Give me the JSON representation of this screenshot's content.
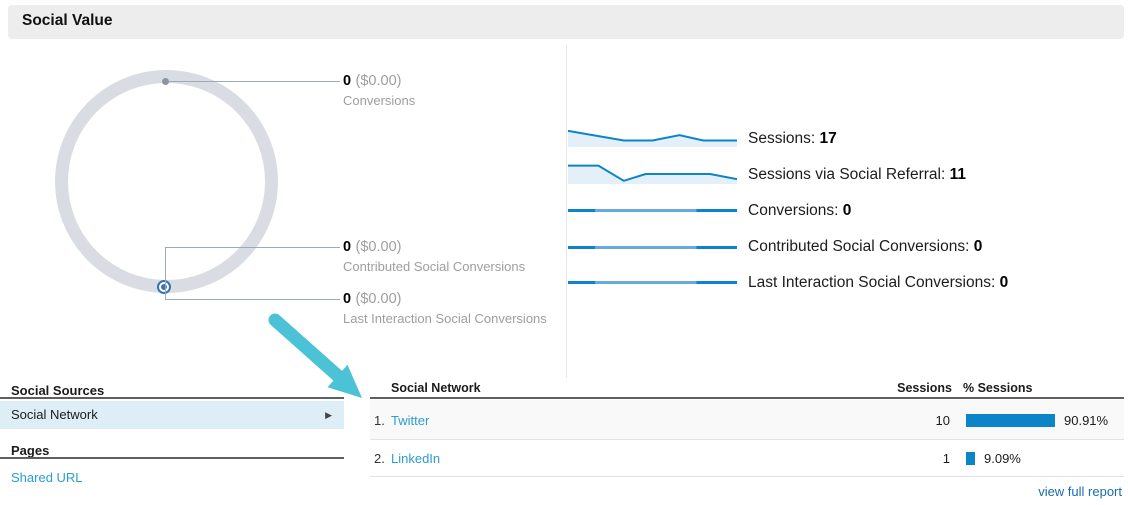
{
  "header": {
    "title": "Social Value"
  },
  "donut": {
    "ring_color": "#d9dde3",
    "callouts": [
      {
        "value": "0",
        "money": "($0.00)",
        "label": "Conversions"
      },
      {
        "value": "0",
        "money": "($0.00)",
        "label": "Contributed Social Conversions"
      },
      {
        "value": "0",
        "money": "($0.00)",
        "label": "Last Interaction Social Conversions"
      }
    ]
  },
  "metrics": {
    "rows": [
      {
        "label": "Sessions:",
        "value": "17",
        "spark": {
          "type": "area",
          "points": [
            [
              0,
              0.88
            ],
            [
              0.33,
              0.28
            ],
            [
              0.5,
              0.28
            ],
            [
              0.66,
              0.62
            ],
            [
              0.8,
              0.28
            ],
            [
              1,
              0.28
            ]
          ]
        }
      },
      {
        "label": "Sessions via Social Referral:",
        "value": "11",
        "spark": {
          "type": "area",
          "points": [
            [
              0,
              0.82
            ],
            [
              0.18,
              0.82
            ],
            [
              0.33,
              0.06
            ],
            [
              0.46,
              0.4
            ],
            [
              0.84,
              0.4
            ],
            [
              1,
              0.14
            ]
          ]
        }
      },
      {
        "label": "Conversions:",
        "value": "0",
        "spark": {
          "type": "flat"
        }
      },
      {
        "label": "Contributed Social Conversions:",
        "value": "0",
        "spark": {
          "type": "flat"
        }
      },
      {
        "label": "Last Interaction Social Conversions:",
        "value": "0",
        "spark": {
          "type": "flat"
        }
      }
    ]
  },
  "left_nav": {
    "sections": [
      {
        "title": "Social Sources",
        "selected_item": "Social Network"
      },
      {
        "title": "Pages",
        "link_item": "Shared URL"
      }
    ]
  },
  "table": {
    "columns": [
      "Social Network",
      "Sessions",
      "% Sessions"
    ],
    "rows": [
      {
        "rank": "1.",
        "name": "Twitter",
        "sessions": "10",
        "percent": 90.91,
        "percent_label": "90.91%"
      },
      {
        "rank": "2.",
        "name": "LinkedIn",
        "sessions": "1",
        "percent": 9.09,
        "percent_label": "9.09%"
      }
    ],
    "footer_link": "view full report"
  },
  "colors": {
    "accent_blue": "#0d83c8",
    "spark_fill": "#e3eff9",
    "link_blue": "#2b9dd1",
    "footer_link_blue": "#1a6bb0",
    "arrow_teal": "#4bc2d6",
    "selected_bg": "#ddeef6",
    "ring_gray": "#d9dde3"
  },
  "chart_data": {
    "type": "bar",
    "title": "% Sessions by Social Network",
    "categories": [
      "Twitter",
      "LinkedIn"
    ],
    "values": [
      90.91,
      9.09
    ],
    "sessions": [
      10,
      1
    ],
    "total_sessions": 17,
    "sessions_via_social_referral": 11
  }
}
